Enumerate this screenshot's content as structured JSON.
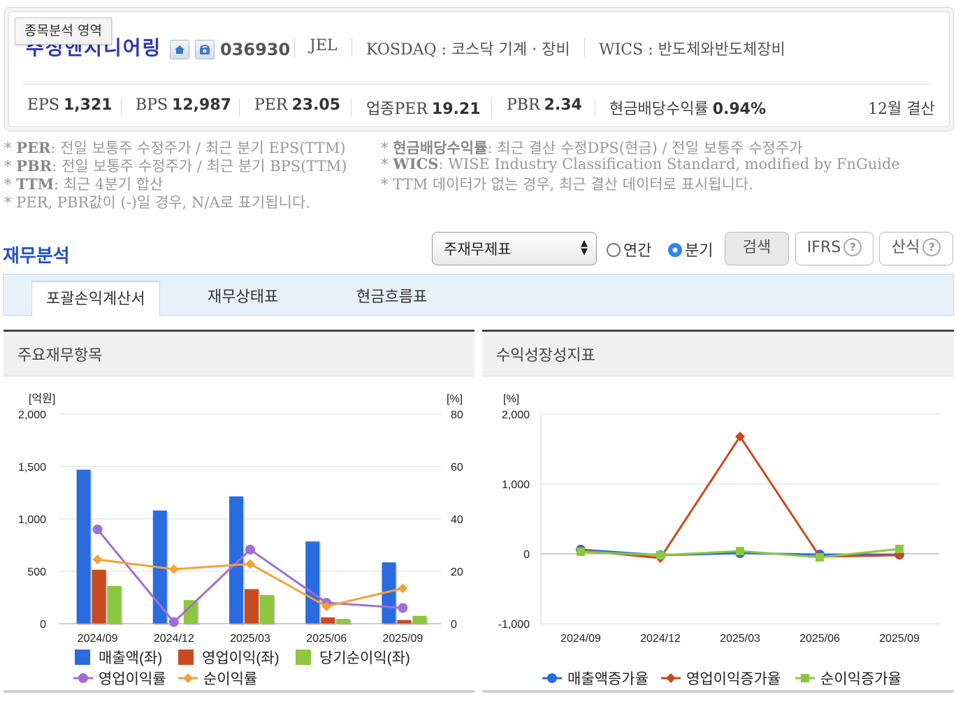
{
  "header": {
    "area_tag": "종목분석 영역",
    "name": "주성엔지니어링",
    "code": "036930",
    "eng": "JEL",
    "market": "KOSDAQ : 코스닥 기계 · 장비",
    "wics": "WICS : 반도체와반도체장비",
    "icons": [
      "home-icon",
      "phone-icon"
    ]
  },
  "metrics": {
    "eps_label": "EPS",
    "eps": "1,321",
    "bps_label": "BPS",
    "bps": "12,987",
    "per_label": "PER",
    "per": "23.05",
    "iper_label": "업종PER",
    "iper": "19.21",
    "pbr_label": "PBR",
    "pbr": "2.34",
    "div_label": "현금배당수익률",
    "div": "0.94%",
    "settle": "12월 결산"
  },
  "notes": {
    "n1k": "PER",
    "n1": ": 전일 보통주 수정주가 / 최근 분기 EPS(TTM)",
    "n2k": "PBR",
    "n2": ": 전일 보통주 수정주가 / 최근 분기 BPS(TTM)",
    "n3k": "TTM",
    "n3": ": 최근 4분기 합산",
    "n4": "PER, PBR값이 (-)일 경우, N/A로 표기됩니다.",
    "n5k": "현금배당수익률",
    "n5": ": 최근 결산 수정DPS(현금) / 전일 보통주 수정주가",
    "n6k": "WICS",
    "n6": ": WISE Industry Classification Standard, modified by FnGuide",
    "n7": "TTM 데이터가 없는 경우, 최근 결산 데이터로 표시됩니다.",
    "star": "*"
  },
  "section": {
    "title": "재무분석",
    "select": "주재무제표",
    "radio_annual": "연간",
    "radio_quarter": "분기",
    "radio_selected": "분기",
    "search": "검색",
    "ifrs": "IFRS",
    "formula": "산식",
    "help": "?"
  },
  "tabs": [
    "포괄손익계산서",
    "재무상태표",
    "현금흐름표"
  ],
  "panels": {
    "left_title": "주요재무항목",
    "right_title": "수익성장성지표"
  },
  "chart_data": [
    {
      "type": "bar",
      "title": "주요재무항목",
      "categories": [
        "2024/09",
        "2024/12",
        "2025/03",
        "2025/06",
        "2025/09"
      ],
      "y_left_label": "[억원]",
      "y_right_label": "[%]",
      "y_left_ticks": [
        "0",
        "500",
        "1,000",
        "1,500",
        "2,000"
      ],
      "y_right_ticks": [
        "0",
        "20",
        "40",
        "60",
        "80"
      ],
      "ylim_left": [
        0,
        2000
      ],
      "ylim_right": [
        0,
        80
      ],
      "grid": true,
      "legend_position": "bottom",
      "series": [
        {
          "name": "매출액(좌)",
          "kind": "bar",
          "axis": "left",
          "color": "#2b6be0",
          "values": [
            1470,
            1080,
            1215,
            785,
            585
          ]
        },
        {
          "name": "영업이익(좌)",
          "kind": "bar",
          "axis": "left",
          "color": "#c94a1f",
          "values": [
            515,
            0,
            330,
            60,
            35
          ]
        },
        {
          "name": "당기순이익(좌)",
          "kind": "bar",
          "axis": "left",
          "color": "#8dc63f",
          "values": [
            360,
            225,
            275,
            45,
            75
          ]
        },
        {
          "name": "영업이익률",
          "kind": "line",
          "axis": "right",
          "color": "#9f6fd6",
          "values": [
            36.0,
            0.6,
            28.3,
            8.0,
            6.0
          ]
        },
        {
          "name": "순이익률",
          "kind": "line",
          "axis": "right",
          "color": "#f5a03a",
          "values": [
            24.5,
            20.8,
            22.8,
            6.6,
            13.5
          ]
        }
      ]
    },
    {
      "type": "line",
      "title": "수익성장성지표",
      "categories": [
        "2024/09",
        "2024/12",
        "2025/03",
        "2025/06",
        "2025/09"
      ],
      "y_label": "[%]",
      "y_ticks": [
        "-1,000",
        "0",
        "1,000",
        "2,000"
      ],
      "ylim": [
        -1000,
        2000
      ],
      "grid": true,
      "legend_position": "bottom",
      "series": [
        {
          "name": "매출액증가율",
          "color": "#2b6be0",
          "marker": "circle",
          "values": [
            60,
            -20,
            10,
            -10,
            -10
          ]
        },
        {
          "name": "영업이익증가율",
          "color": "#c94a1f",
          "marker": "diamond",
          "values": [
            50,
            -60,
            1680,
            -40,
            -20
          ]
        },
        {
          "name": "순이익증가율",
          "color": "#8dc63f",
          "marker": "square",
          "values": [
            30,
            -20,
            40,
            -50,
            70
          ]
        }
      ]
    }
  ]
}
